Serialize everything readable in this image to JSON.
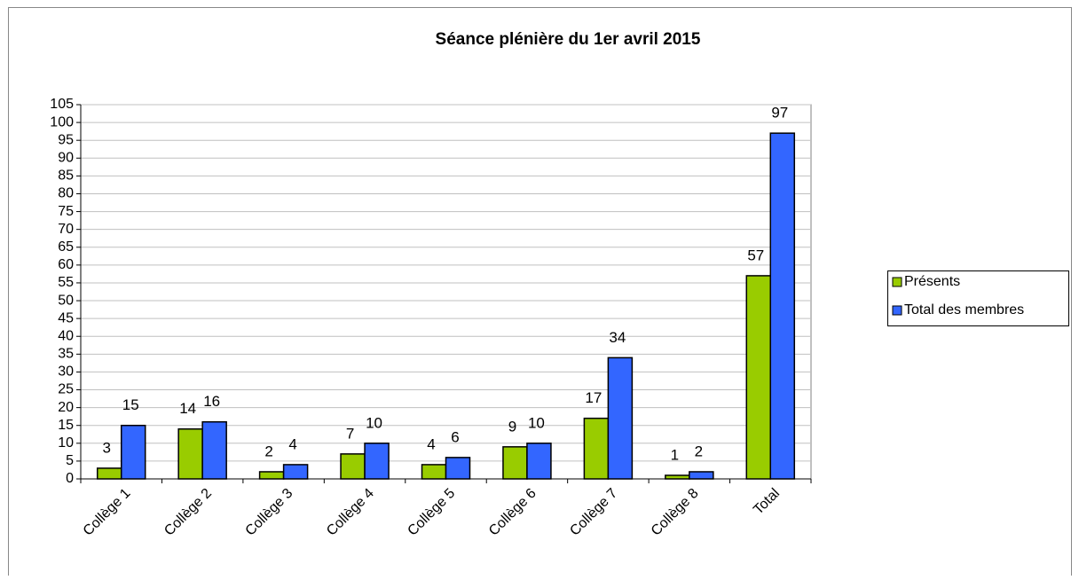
{
  "chart_data": {
    "type": "bar",
    "title": "Séance plénière du 1er avril 2015",
    "categories": [
      "Collège 1",
      "Collège 2",
      "Collège 3",
      "Collège 4",
      "Collège 5",
      "Collège 6",
      "Collège 7",
      "Collège 8",
      "Total"
    ],
    "series": [
      {
        "name": "Présents",
        "color": "#99cc00",
        "values": [
          3,
          14,
          2,
          7,
          4,
          9,
          17,
          1,
          57
        ]
      },
      {
        "name": "Total des membres",
        "color": "#3366ff",
        "values": [
          15,
          16,
          4,
          10,
          6,
          10,
          34,
          2,
          97
        ]
      }
    ],
    "ylim": [
      0,
      105
    ],
    "yticks": [
      0,
      5,
      10,
      15,
      20,
      25,
      30,
      35,
      40,
      45,
      50,
      55,
      60,
      65,
      70,
      75,
      80,
      85,
      90,
      95,
      100,
      105
    ],
    "grid": true,
    "legend": "right"
  }
}
